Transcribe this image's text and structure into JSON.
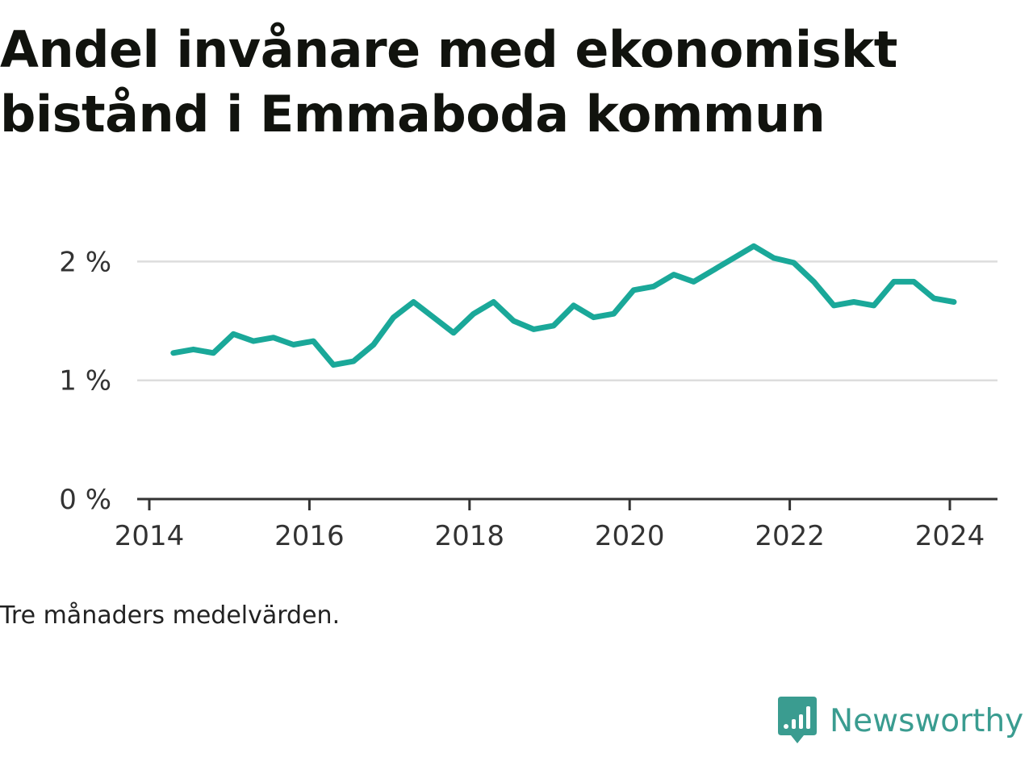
{
  "title": "Andel invånare med ekonomiskt bistånd i Emmaboda kommun",
  "note": "Tre månaders medelvärden.",
  "brand": "Newsworthy",
  "colors": {
    "line": "#1aa899",
    "grid": "#dddddd",
    "axis": "#333333",
    "brand": "#3a9c90"
  },
  "chart_data": {
    "type": "line",
    "title": "Andel invånare med ekonomiskt bistånd i Emmaboda kommun",
    "xlabel": "",
    "ylabel": "",
    "xlim": [
      2014,
      2024.5
    ],
    "ylim": [
      0,
      2.25
    ],
    "x_ticks": [
      2014,
      2016,
      2018,
      2020,
      2022,
      2024
    ],
    "y_ticks": [
      0,
      1,
      2
    ],
    "y_tick_labels": [
      "0 %",
      "1 %",
      "2 %"
    ],
    "grid": true,
    "series": [
      {
        "name": "",
        "x": [
          2014.3,
          2014.55,
          2014.8,
          2015.05,
          2015.3,
          2015.55,
          2015.8,
          2016.05,
          2016.3,
          2016.55,
          2016.8,
          2017.05,
          2017.3,
          2017.55,
          2017.8,
          2018.05,
          2018.3,
          2018.55,
          2018.8,
          2019.05,
          2019.3,
          2019.55,
          2019.8,
          2020.05,
          2020.3,
          2020.55,
          2020.8,
          2021.05,
          2021.3,
          2021.55,
          2021.8,
          2022.05,
          2022.3,
          2022.55,
          2022.8,
          2023.05,
          2023.3,
          2023.55,
          2023.8,
          2024.05
        ],
        "values": [
          1.23,
          1.26,
          1.23,
          1.39,
          1.33,
          1.36,
          1.3,
          1.33,
          1.13,
          1.16,
          1.3,
          1.53,
          1.66,
          1.53,
          1.4,
          1.56,
          1.66,
          1.5,
          1.43,
          1.46,
          1.63,
          1.53,
          1.56,
          1.76,
          1.79,
          1.89,
          1.83,
          1.93,
          2.03,
          2.13,
          2.03,
          1.99,
          1.83,
          1.63,
          1.66,
          1.63,
          1.83,
          1.83,
          1.69,
          1.66
        ]
      }
    ]
  }
}
